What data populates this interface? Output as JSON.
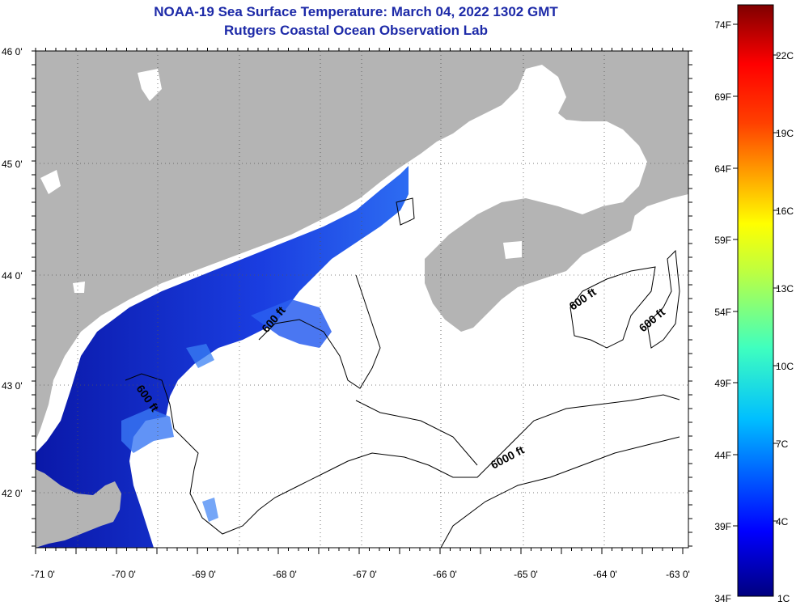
{
  "header": {
    "title": "NOAA-19 Sea Surface Temperature:  March 04, 2022 1302 GMT",
    "subtitle": "Rutgers Coastal Ocean Observation Lab"
  },
  "map": {
    "lon_labels": [
      "-71 0'",
      "-70 0'",
      "-69 0'",
      "-68 0'",
      "-67 0'",
      "-66 0'",
      "-65 0'",
      "-64 0'",
      "-63 0'"
    ],
    "lat_labels": [
      "46 0'",
      "45 0'",
      "44 0'",
      "43 0'",
      "42 0'"
    ],
    "contour_labels": [
      "600 ft",
      "600 ft",
      "600 ft",
      "600 ft",
      "6000 ft"
    ],
    "colors": {
      "land": "#b4b4b4",
      "water_cold": "#0a1fb8",
      "water_mid": "#1e4fe6",
      "cloud": "#ffffff",
      "contour": "#000000"
    }
  },
  "colorbar": {
    "fahrenheit_labels": [
      "74F",
      "69F",
      "64F",
      "59F",
      "54F",
      "49F",
      "44F",
      "39F",
      "34F"
    ],
    "celsius_labels": [
      "22C",
      "19C",
      "16C",
      "13C",
      "10C",
      "7C",
      "4C",
      "1C"
    ]
  }
}
